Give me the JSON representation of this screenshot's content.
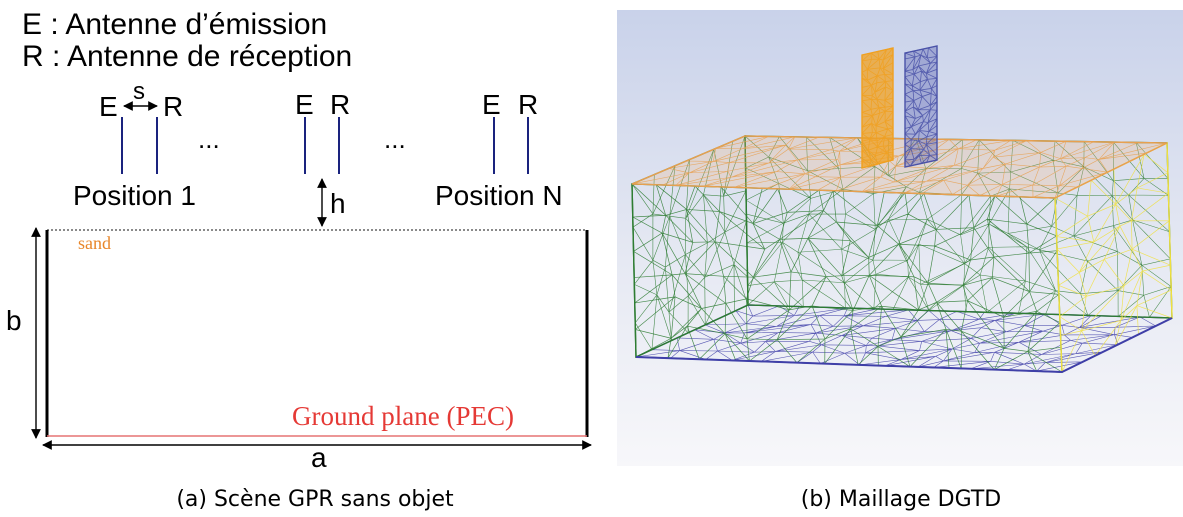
{
  "legend": {
    "line_e": "E : Antenne d’émission",
    "line_r": "R : Antenne de réception"
  },
  "scene": {
    "pos1": {
      "e": "E",
      "r": "R",
      "s": "s",
      "label": "Position 1"
    },
    "mid": {
      "e": "E",
      "r": "R",
      "h": "h"
    },
    "posN": {
      "e": "E",
      "r": "R",
      "label": "Position N"
    },
    "ellipsis": "...",
    "sand": "sand",
    "ground": "Ground plane (PEC)",
    "dim_a": "a",
    "dim_b": "b"
  },
  "captions": {
    "left": "(a) Scène GPR sans objet",
    "right": "(b) Maillage DGTD"
  },
  "colors": {
    "antenna": "#1a237e",
    "sand_text": "#e8862a",
    "ground_text": "#e53935",
    "ground_line": "#e57373",
    "mesh_top": "#e8a050",
    "mesh_side": "#2e7d32",
    "mesh_right": "#f0e040",
    "mesh_bottom": "#3f3fa8",
    "antenna_orange": "#f0a020",
    "antenna_blue": "#4a52a8"
  }
}
